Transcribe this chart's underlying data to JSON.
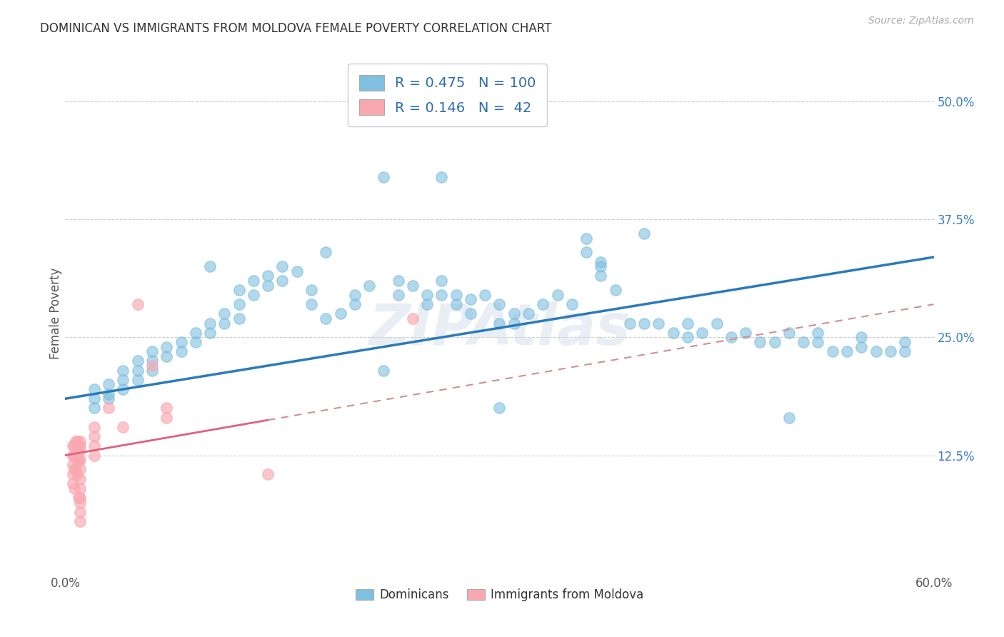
{
  "title": "DOMINICAN VS IMMIGRANTS FROM MOLDOVA FEMALE POVERTY CORRELATION CHART",
  "source": "Source: ZipAtlas.com",
  "ylabel": "Female Poverty",
  "xlim": [
    0.0,
    0.6
  ],
  "ylim": [
    0.0,
    0.55
  ],
  "ytick_positions": [
    0.125,
    0.25,
    0.375,
    0.5
  ],
  "ytick_labels": [
    "12.5%",
    "25.0%",
    "37.5%",
    "50.0%"
  ],
  "dominican_color": "#7fbfdf",
  "moldova_color": "#f9a8b0",
  "trendline_dominican_color": "#2b7bba",
  "trendline_moldova_color": "#e06080",
  "trendline_moldova_dash_color": "#d09090",
  "R_dominican": 0.475,
  "N_dominican": 100,
  "R_moldova": 0.146,
  "N_moldova": 42,
  "background_color": "#ffffff",
  "grid_color": "#cccccc",
  "watermark": "ZIPAtlas",
  "dom_trend_x0": 0.0,
  "dom_trend_y0": 0.185,
  "dom_trend_x1": 0.6,
  "dom_trend_y1": 0.335,
  "mol_trend_x0": 0.0,
  "mol_trend_y0": 0.125,
  "mol_trend_x1": 0.6,
  "mol_trend_y1": 0.285,
  "dominican_x": [
    0.02,
    0.02,
    0.02,
    0.03,
    0.03,
    0.03,
    0.04,
    0.04,
    0.04,
    0.05,
    0.05,
    0.05,
    0.06,
    0.06,
    0.06,
    0.07,
    0.07,
    0.08,
    0.08,
    0.09,
    0.09,
    0.1,
    0.1,
    0.11,
    0.11,
    0.12,
    0.12,
    0.12,
    0.13,
    0.13,
    0.14,
    0.14,
    0.15,
    0.15,
    0.16,
    0.17,
    0.17,
    0.18,
    0.19,
    0.2,
    0.2,
    0.21,
    0.22,
    0.23,
    0.23,
    0.24,
    0.25,
    0.25,
    0.26,
    0.26,
    0.27,
    0.27,
    0.28,
    0.28,
    0.29,
    0.3,
    0.3,
    0.31,
    0.31,
    0.32,
    0.33,
    0.34,
    0.35,
    0.36,
    0.36,
    0.37,
    0.37,
    0.38,
    0.39,
    0.4,
    0.41,
    0.42,
    0.43,
    0.43,
    0.44,
    0.45,
    0.46,
    0.47,
    0.48,
    0.49,
    0.5,
    0.51,
    0.52,
    0.52,
    0.53,
    0.54,
    0.55,
    0.55,
    0.56,
    0.57,
    0.58,
    0.58,
    0.26,
    0.18,
    0.4,
    0.3,
    0.1,
    0.5,
    0.37,
    0.22
  ],
  "dominican_y": [
    0.195,
    0.185,
    0.175,
    0.2,
    0.19,
    0.185,
    0.215,
    0.205,
    0.195,
    0.225,
    0.215,
    0.205,
    0.235,
    0.225,
    0.215,
    0.24,
    0.23,
    0.245,
    0.235,
    0.255,
    0.245,
    0.265,
    0.255,
    0.275,
    0.265,
    0.3,
    0.285,
    0.27,
    0.31,
    0.295,
    0.315,
    0.305,
    0.325,
    0.31,
    0.32,
    0.3,
    0.285,
    0.27,
    0.275,
    0.295,
    0.285,
    0.305,
    0.215,
    0.31,
    0.295,
    0.305,
    0.295,
    0.285,
    0.31,
    0.295,
    0.295,
    0.285,
    0.29,
    0.275,
    0.295,
    0.285,
    0.265,
    0.275,
    0.265,
    0.275,
    0.285,
    0.295,
    0.285,
    0.355,
    0.34,
    0.325,
    0.315,
    0.3,
    0.265,
    0.265,
    0.265,
    0.255,
    0.25,
    0.265,
    0.255,
    0.265,
    0.25,
    0.255,
    0.245,
    0.245,
    0.255,
    0.245,
    0.255,
    0.245,
    0.235,
    0.235,
    0.24,
    0.25,
    0.235,
    0.235,
    0.235,
    0.245,
    0.42,
    0.34,
    0.36,
    0.175,
    0.325,
    0.165,
    0.33,
    0.42
  ],
  "moldova_x": [
    0.005,
    0.005,
    0.005,
    0.005,
    0.005,
    0.006,
    0.006,
    0.006,
    0.006,
    0.007,
    0.007,
    0.007,
    0.008,
    0.008,
    0.008,
    0.008,
    0.009,
    0.009,
    0.009,
    0.01,
    0.01,
    0.01,
    0.01,
    0.01,
    0.01,
    0.01,
    0.01,
    0.01,
    0.01,
    0.01,
    0.02,
    0.02,
    0.02,
    0.02,
    0.03,
    0.04,
    0.05,
    0.06,
    0.07,
    0.07,
    0.14,
    0.24
  ],
  "moldova_y": [
    0.135,
    0.125,
    0.115,
    0.105,
    0.095,
    0.135,
    0.125,
    0.11,
    0.09,
    0.14,
    0.125,
    0.11,
    0.14,
    0.13,
    0.12,
    0.105,
    0.135,
    0.12,
    0.08,
    0.14,
    0.135,
    0.13,
    0.12,
    0.11,
    0.1,
    0.09,
    0.08,
    0.075,
    0.065,
    0.055,
    0.155,
    0.145,
    0.135,
    0.125,
    0.175,
    0.155,
    0.285,
    0.22,
    0.175,
    0.165,
    0.105,
    0.27
  ]
}
